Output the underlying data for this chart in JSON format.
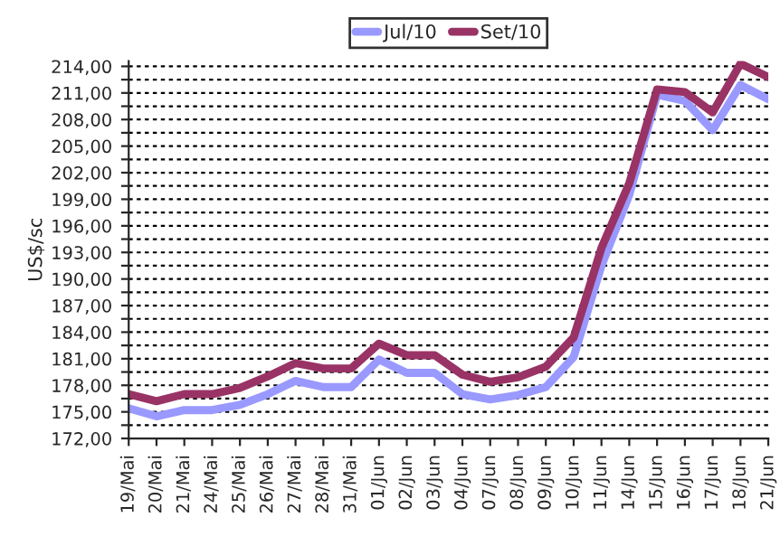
{
  "chart_data": {
    "type": "line",
    "ylabel": "US$/sc",
    "categories": [
      "19/Mai",
      "20/Mai",
      "21/Mai",
      "24/Mai",
      "25/Mai",
      "26/Mai",
      "27/Mai",
      "28/Mai",
      "31/Mai",
      "01/Jun",
      "02/Jun",
      "03/Jun",
      "04/Jun",
      "07/Jun",
      "08/Jun",
      "09/Jun",
      "10/Jun",
      "11/Jun",
      "14/Jun",
      "15/Jun",
      "16/Jun",
      "17/Jun",
      "18/Jun",
      "21/Jun"
    ],
    "series": [
      {
        "name": "Jul/10",
        "color": "#9999ff",
        "values": [
          175.4,
          174.5,
          175.2,
          175.2,
          175.8,
          177.0,
          178.5,
          177.8,
          177.8,
          180.9,
          179.4,
          179.4,
          177.0,
          176.4,
          176.9,
          177.8,
          181.2,
          191.5,
          199.5,
          210.8,
          210.1,
          206.8,
          211.9,
          210.3
        ]
      },
      {
        "name": "Set/10",
        "color": "#993366",
        "values": [
          177.0,
          176.2,
          177.0,
          177.0,
          177.7,
          179.0,
          180.5,
          179.9,
          179.9,
          182.7,
          181.4,
          181.4,
          179.2,
          178.4,
          178.9,
          180.1,
          183.4,
          193.5,
          200.8,
          211.4,
          211.1,
          208.8,
          214.3,
          212.8
        ]
      }
    ],
    "ylim": [
      172,
      214.6
    ],
    "yticks": [
      "172,00",
      {
        "value": 173.5,
        "label": null
      },
      {
        "value": 175,
        "label": "175,00"
      },
      {
        "value": 176.5,
        "label": null
      },
      {
        "value": 178,
        "label": "178,00"
      },
      {
        "value": 179.5,
        "label": null
      },
      {
        "value": 181,
        "label": "181,00"
      },
      {
        "value": 182.5,
        "label": null
      },
      {
        "value": 184,
        "label": "184,00"
      },
      {
        "value": 185.5,
        "label": null
      },
      {
        "value": 187,
        "label": "187,00"
      },
      {
        "value": 188.5,
        "label": null
      },
      {
        "value": 190,
        "label": "190,00"
      },
      {
        "value": 191.5,
        "label": null
      },
      {
        "value": 193,
        "label": "193,00"
      },
      {
        "value": 194.5,
        "label": null
      },
      {
        "value": 196,
        "label": "196,00"
      },
      {
        "value": 197.5,
        "label": null
      },
      {
        "value": 199,
        "label": "199,00"
      },
      {
        "value": 200.5,
        "label": null
      },
      {
        "value": 202,
        "label": "202,00"
      },
      {
        "value": 203.5,
        "label": null
      },
      {
        "value": 205,
        "label": "205,00"
      },
      {
        "value": 206.5,
        "label": null
      },
      {
        "value": 208,
        "label": "208,00"
      },
      {
        "value": 209.5,
        "label": null
      },
      {
        "value": 211,
        "label": "211,00"
      },
      {
        "value": 212.5,
        "label": null
      },
      {
        "value": 214,
        "label": "214,00"
      }
    ],
    "grid": "y",
    "legend": "top",
    "marker": "none",
    "line_style": "solid"
  }
}
